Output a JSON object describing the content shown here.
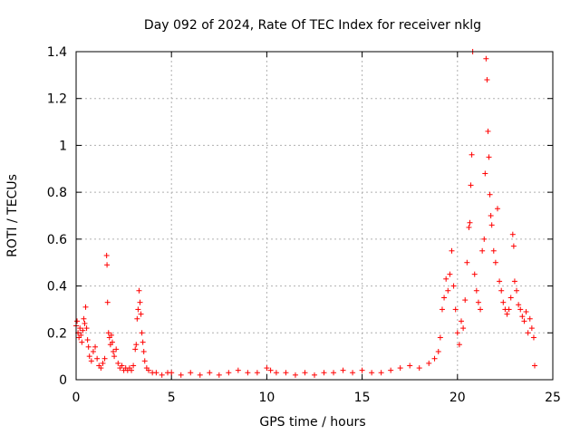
{
  "chart_data": {
    "type": "scatter",
    "title": "Day 092 of 2024, Rate Of TEC Index for receiver nklg",
    "xlabel": "GPS time / hours",
    "ylabel": "ROTI / TECUs",
    "xlim": [
      0,
      25
    ],
    "ylim": [
      0,
      1.4
    ],
    "xticks": [
      0,
      5,
      10,
      15,
      20,
      25
    ],
    "xtick_labels": [
      "0",
      "5",
      "10",
      "15",
      "20",
      "25"
    ],
    "yticks": [
      0,
      0.2,
      0.4,
      0.6,
      0.8,
      1.0,
      1.2,
      1.4
    ],
    "ytick_labels": [
      "0",
      "0.2",
      "0.4",
      "0.6",
      "0.8",
      "1",
      "1.2",
      "1.4"
    ],
    "grid": true,
    "marker": "+",
    "color": "#ff0000",
    "series": [
      {
        "values_xy": [
          [
            0.0,
            0.23
          ],
          [
            0.05,
            0.25
          ],
          [
            0.1,
            0.2
          ],
          [
            0.15,
            0.18
          ],
          [
            0.2,
            0.22
          ],
          [
            0.25,
            0.19
          ],
          [
            0.3,
            0.16
          ],
          [
            0.35,
            0.21
          ],
          [
            0.4,
            0.26
          ],
          [
            0.45,
            0.24
          ],
          [
            0.5,
            0.31
          ],
          [
            0.55,
            0.22
          ],
          [
            0.6,
            0.17
          ],
          [
            0.65,
            0.14
          ],
          [
            0.7,
            0.1
          ],
          [
            0.8,
            0.08
          ],
          [
            0.9,
            0.12
          ],
          [
            1.0,
            0.14
          ],
          [
            1.1,
            0.09
          ],
          [
            1.2,
            0.06
          ],
          [
            1.3,
            0.05
          ],
          [
            1.4,
            0.07
          ],
          [
            1.5,
            0.09
          ],
          [
            1.6,
            0.53
          ],
          [
            1.62,
            0.49
          ],
          [
            1.65,
            0.33
          ],
          [
            1.7,
            0.2
          ],
          [
            1.75,
            0.18
          ],
          [
            1.8,
            0.15
          ],
          [
            1.85,
            0.19
          ],
          [
            1.9,
            0.16
          ],
          [
            1.95,
            0.12
          ],
          [
            2.0,
            0.1
          ],
          [
            2.1,
            0.13
          ],
          [
            2.2,
            0.07
          ],
          [
            2.3,
            0.05
          ],
          [
            2.4,
            0.06
          ],
          [
            2.5,
            0.04
          ],
          [
            2.6,
            0.05
          ],
          [
            2.7,
            0.04
          ],
          [
            2.8,
            0.05
          ],
          [
            2.9,
            0.04
          ],
          [
            3.0,
            0.06
          ],
          [
            3.1,
            0.13
          ],
          [
            3.15,
            0.15
          ],
          [
            3.2,
            0.26
          ],
          [
            3.25,
            0.3
          ],
          [
            3.3,
            0.38
          ],
          [
            3.35,
            0.33
          ],
          [
            3.4,
            0.28
          ],
          [
            3.45,
            0.2
          ],
          [
            3.5,
            0.16
          ],
          [
            3.55,
            0.12
          ],
          [
            3.6,
            0.08
          ],
          [
            3.7,
            0.05
          ],
          [
            3.8,
            0.04
          ],
          [
            4.0,
            0.03
          ],
          [
            4.2,
            0.03
          ],
          [
            4.5,
            0.02
          ],
          [
            4.8,
            0.03
          ],
          [
            5.0,
            0.03
          ],
          [
            5.5,
            0.02
          ],
          [
            6.0,
            0.03
          ],
          [
            6.5,
            0.02
          ],
          [
            7.0,
            0.03
          ],
          [
            7.5,
            0.02
          ],
          [
            8.0,
            0.03
          ],
          [
            8.5,
            0.04
          ],
          [
            9.0,
            0.03
          ],
          [
            9.5,
            0.03
          ],
          [
            10.0,
            0.05
          ],
          [
            10.2,
            0.04
          ],
          [
            10.5,
            0.03
          ],
          [
            11.0,
            0.03
          ],
          [
            11.5,
            0.02
          ],
          [
            12.0,
            0.03
          ],
          [
            12.5,
            0.02
          ],
          [
            13.0,
            0.03
          ],
          [
            13.5,
            0.03
          ],
          [
            14.0,
            0.04
          ],
          [
            14.5,
            0.03
          ],
          [
            15.0,
            0.04
          ],
          [
            15.5,
            0.03
          ],
          [
            16.0,
            0.03
          ],
          [
            16.5,
            0.04
          ],
          [
            17.0,
            0.05
          ],
          [
            17.5,
            0.06
          ],
          [
            18.0,
            0.05
          ],
          [
            18.5,
            0.07
          ],
          [
            18.8,
            0.09
          ],
          [
            19.0,
            0.12
          ],
          [
            19.1,
            0.18
          ],
          [
            19.2,
            0.3
          ],
          [
            19.3,
            0.35
          ],
          [
            19.4,
            0.43
          ],
          [
            19.5,
            0.38
          ],
          [
            19.6,
            0.45
          ],
          [
            19.7,
            0.55
          ],
          [
            19.8,
            0.4
          ],
          [
            19.9,
            0.3
          ],
          [
            20.0,
            0.2
          ],
          [
            20.1,
            0.15
          ],
          [
            20.2,
            0.25
          ],
          [
            20.3,
            0.22
          ],
          [
            20.4,
            0.34
          ],
          [
            20.5,
            0.5
          ],
          [
            20.6,
            0.65
          ],
          [
            20.65,
            0.67
          ],
          [
            20.7,
            0.83
          ],
          [
            20.75,
            0.96
          ],
          [
            20.8,
            1.4
          ],
          [
            20.9,
            0.45
          ],
          [
            21.0,
            0.38
          ],
          [
            21.1,
            0.33
          ],
          [
            21.2,
            0.3
          ],
          [
            21.3,
            0.55
          ],
          [
            21.4,
            0.6
          ],
          [
            21.45,
            0.88
          ],
          [
            21.5,
            1.37
          ],
          [
            21.55,
            1.28
          ],
          [
            21.6,
            1.06
          ],
          [
            21.65,
            0.95
          ],
          [
            21.7,
            0.79
          ],
          [
            21.75,
            0.7
          ],
          [
            21.8,
            0.66
          ],
          [
            21.9,
            0.55
          ],
          [
            22.0,
            0.5
          ],
          [
            22.1,
            0.73
          ],
          [
            22.2,
            0.42
          ],
          [
            22.3,
            0.38
          ],
          [
            22.4,
            0.33
          ],
          [
            22.5,
            0.3
          ],
          [
            22.6,
            0.28
          ],
          [
            22.7,
            0.3
          ],
          [
            22.8,
            0.35
          ],
          [
            22.9,
            0.62
          ],
          [
            22.95,
            0.57
          ],
          [
            23.0,
            0.42
          ],
          [
            23.1,
            0.38
          ],
          [
            23.2,
            0.32
          ],
          [
            23.3,
            0.3
          ],
          [
            23.4,
            0.27
          ],
          [
            23.5,
            0.25
          ],
          [
            23.6,
            0.29
          ],
          [
            23.7,
            0.2
          ],
          [
            23.8,
            0.26
          ],
          [
            23.9,
            0.22
          ],
          [
            24.0,
            0.18
          ],
          [
            24.05,
            0.06
          ]
        ]
      }
    ]
  }
}
